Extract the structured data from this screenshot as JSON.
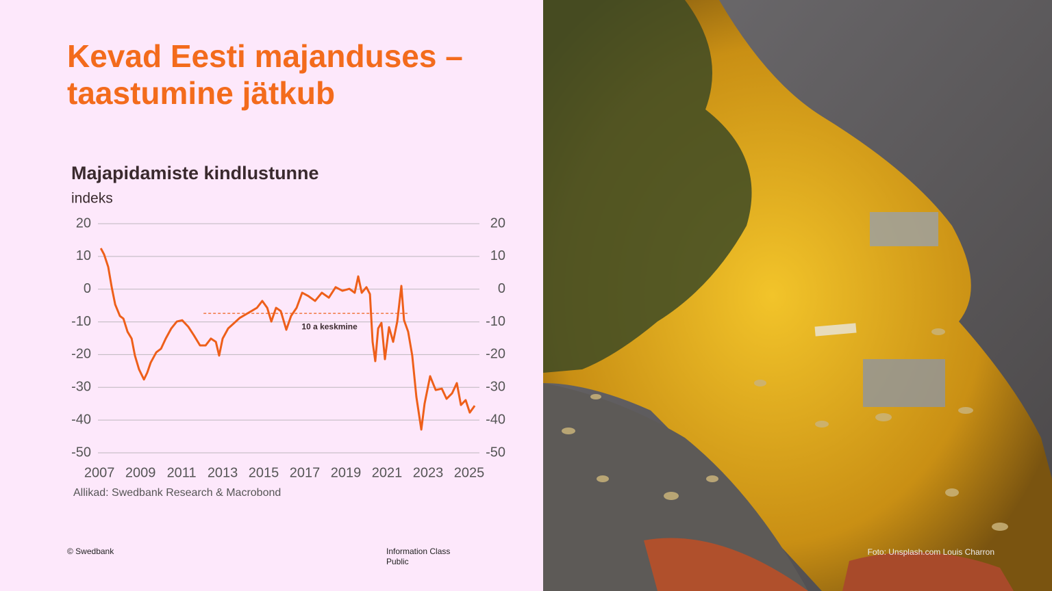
{
  "slide": {
    "title_lines": [
      "Kevad Eesti majanduses –",
      "taastumine jätkub"
    ],
    "copyright": "© Swedbank",
    "classification_lines": [
      "Information Class",
      "Public"
    ],
    "photo_credit": "Foto: Unsplash.com Louis Charron"
  },
  "chart_data": {
    "type": "line",
    "title": "Majapidamiste kindlustunne",
    "subtitle": "indeks",
    "source": "Allikad: Swedbank Research & Macrobond",
    "color": "#ee5f1a",
    "grid": true,
    "xlim": [
      2006.93,
      2025.5
    ],
    "xticks": [
      2007,
      2009,
      2011,
      2013,
      2015,
      2017,
      2019,
      2021,
      2023,
      2025
    ],
    "ylim": [
      -50,
      20
    ],
    "yticks": [
      -50,
      -40,
      -30,
      -20,
      -10,
      0,
      10,
      20
    ],
    "y2lim": [
      -50,
      20
    ],
    "y2ticks": [
      -50,
      -40,
      -30,
      -20,
      -10,
      0,
      10,
      20
    ],
    "x": [
      2007.07,
      2007.23,
      2007.43,
      2007.6,
      2007.77,
      2008.0,
      2008.17,
      2008.37,
      2008.57,
      2008.73,
      2008.93,
      2009.17,
      2009.33,
      2009.5,
      2009.77,
      2010.0,
      2010.23,
      2010.5,
      2010.77,
      2011.03,
      2011.33,
      2011.6,
      2011.9,
      2012.17,
      2012.43,
      2012.67,
      2012.83,
      2013.0,
      2013.27,
      2013.57,
      2013.83,
      2014.1,
      2014.4,
      2014.67,
      2014.93,
      2015.17,
      2015.37,
      2015.6,
      2015.83,
      2016.1,
      2016.33,
      2016.6,
      2016.87,
      2017.17,
      2017.5,
      2017.83,
      2018.17,
      2018.5,
      2018.83,
      2019.17,
      2019.43,
      2019.6,
      2019.77,
      2020.0,
      2020.17,
      2020.3,
      2020.43,
      2020.57,
      2020.73,
      2020.9,
      2021.1,
      2021.3,
      2021.5,
      2021.7,
      2021.83,
      2022.03,
      2022.23,
      2022.43,
      2022.67,
      2022.83,
      2023.1,
      2023.37,
      2023.67,
      2023.9,
      2024.17,
      2024.4,
      2024.6,
      2024.83,
      2025.03,
      2025.27
    ],
    "values": [
      12.5,
      10.6,
      6.8,
      0.6,
      -4.7,
      -8.2,
      -9.0,
      -13.0,
      -15.1,
      -20.3,
      -24.5,
      -27.6,
      -25.5,
      -22.4,
      -19.3,
      -18.2,
      -15.1,
      -12.0,
      -9.9,
      -9.5,
      -11.5,
      -14.1,
      -17.2,
      -17.2,
      -15.1,
      -16.1,
      -20.3,
      -15.1,
      -12.0,
      -10.3,
      -8.8,
      -7.8,
      -6.7,
      -5.7,
      -3.6,
      -5.7,
      -9.9,
      -5.7,
      -6.7,
      -12.4,
      -8.2,
      -5.7,
      -1.1,
      -2.1,
      -3.6,
      -1.1,
      -2.6,
      0.6,
      -0.5,
      0.1,
      -1.1,
      3.9,
      -1.1,
      0.6,
      -1.5,
      -16.1,
      -22.0,
      -12.0,
      -10.3,
      -21.4,
      -11.6,
      -16.1,
      -9.9,
      1.0,
      -9.5,
      -13.0,
      -20.3,
      -32.9,
      -42.9,
      -35.0,
      -26.6,
      -30.8,
      -30.4,
      -33.5,
      -31.8,
      -28.7,
      -35.4,
      -33.9,
      -37.7,
      -35.6
    ],
    "reference": {
      "label": "10 a keskmine",
      "value": -7.4,
      "x": [
        2012.07,
        2022.0
      ],
      "color": "#ee5f1a"
    }
  }
}
